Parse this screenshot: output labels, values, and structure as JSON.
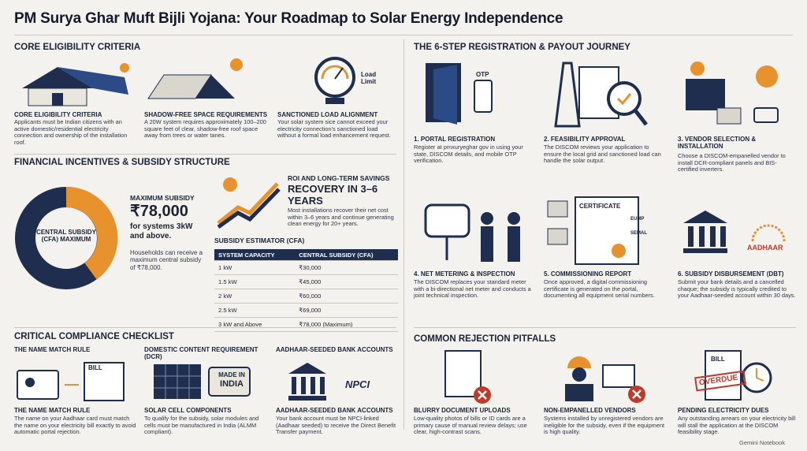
{
  "header": {
    "title": "PM Surya Ghar Muft Bijli Yojana: Your Roadmap to Solar Energy Independence"
  },
  "eligibility": {
    "heading": "CORE ELIGIBILITY CRITERIA",
    "load_icon_label": "Load Limit",
    "items": [
      {
        "title": "CORE ELIGIBILITY CRITERIA",
        "text": "Applicants must be Indian citizens with an active domestic/residential electricity connection and ownership of the installation roof."
      },
      {
        "title": "SHADOW-FREE SPACE REQUIREMENTS",
        "text": "A 20W system requires approximately 100–200 square feet of clear, shadow-free roof space away from trees or water tanes."
      },
      {
        "title": "SANCTIONED LOAD ALIGNMENT",
        "text": "Your solar system sice cannot exceed your electricity connection's sanctioned load without a formal load enhancement request."
      }
    ]
  },
  "financial": {
    "heading": "FINANCIAL INCENTIVES & SUBSIDY STRUCTURE",
    "donut_label": "CENTRAL SUBSIDY (CFA) MAXIMUM",
    "max_subsidy": {
      "label": "MAXIMUM SUBSIDY",
      "amount": "₹78,000",
      "condition": "for systems 3kW and above.",
      "text": "Households can receive a maximum central subsidy of ₹78,000."
    },
    "roi": {
      "label": "ROI AND LONG-TERM SAVINGS",
      "headline": "RECOVERY IN 3–6 YEARS",
      "text": "Most installations recover their net cost within 3–6 years and continue generating clean energy for 20+ years."
    },
    "estimator": {
      "title": "SUBSIDY ESTIMATOR (CFA)",
      "columns": [
        "SYSTEM CAPACITY",
        "CENTRAL SUBSIDY (CFA)"
      ],
      "rows": [
        [
          "1 kW",
          "₹30,000"
        ],
        [
          "1.5 kW",
          "₹45,000"
        ],
        [
          "2 kW",
          "₹60,000"
        ],
        [
          "2.5 kW",
          "₹69,000"
        ],
        [
          "3 kW and Above",
          "₹78,000 (Maximum)"
        ]
      ]
    }
  },
  "compliance": {
    "heading": "CRITICAL COMPLIANCE CHECKLIST",
    "icon_labels": [
      "BILL",
      "MADE IN",
      "INDIA",
      "NPCI"
    ],
    "items": [
      {
        "top_label": "THE NAME MATCH RULE",
        "title": "THE NAME MATCH RULE",
        "text": "The name on your Aadhaar card must match the name on your electricity bill exactly to avoid automatic portal rejection."
      },
      {
        "top_label": "DOMESTIC CONTENT REQUIREMENT (DCR)",
        "title": "SOLAR CELL COMPONENTS",
        "text": "To qualify for the subsidy, solar modules and cells must be manufactured in India (ALMM compliant)."
      },
      {
        "top_label": "AADHAAR-SEEDED BANK ACCOUNTS",
        "title": "AADHAAR-SEEDED BANK ACCOUNTS",
        "text": "Your bank account must be NPCI-linked (Aadhaar seeded) to receive the Direct Benefit Transfer payment."
      }
    ]
  },
  "journey": {
    "heading": "THE 6-STEP REGISTRATION & PAYOUT JOURNEY",
    "icon_labels": [
      "OTP",
      "CERTIFICATE",
      "EUMP",
      "SEMAL",
      "AADHAAR"
    ],
    "steps": [
      {
        "title": "1. PORTAL REGISTRATION",
        "text": "Register at pmxuryeghar gov in using your state, DISCOM details, and mobile OTP verification."
      },
      {
        "title": "2. FEASIBILITY APPROVAL",
        "text": "The DISCOM reviews your application to ensure the local grid and sanctioned load can handle the solar output."
      },
      {
        "title": "3. VENDOR SELECTION & INSTALLATION",
        "text": "Choose a DISCOM-empanelled vendor to install DCR-compliant panels and BIS-certified inverters."
      },
      {
        "title": "4. NET METERING & INSPECTION",
        "text": "The DISCOM replaces your standard meter with a bi-directional net meter and conducts a joint technical inspection."
      },
      {
        "title": "5. COMMISSIONING REPORT",
        "text": "Once approved, a digital commissioning certificate is generated on the portal, documenting all equipment serial numbers."
      },
      {
        "title": "6. SUBSIDY DISBURSEMENT (DBT)",
        "text": "Submit your bank details and a cancelled chaque; the subsidy is typically credited to your Aadhaar-seeded account within 30 days."
      }
    ]
  },
  "pitfalls": {
    "heading": "COMMON REJECTION PITFALLS",
    "icon_labels": [
      "BILL",
      "OVERDUE"
    ],
    "items": [
      {
        "title": "BLURRY DOCUMENT UPLOADS",
        "text": "Low-quality photos of bills or ID cards are a primary cause of manual review delays; use clear, high-contrast scans."
      },
      {
        "title": "NON-EMPANELLED VENDORS",
        "text": "Systems installed by unregistered vendors are ineligible for the subsidy, even if the equipment is high quality."
      },
      {
        "title": "PENDING ELECTRICITY DUES",
        "text": "Any outstanding arrears on your electricity bill will stall the application at the DISCOM feasibility stage."
      }
    ]
  },
  "footer": {
    "brand": "Gemini Notebook"
  }
}
